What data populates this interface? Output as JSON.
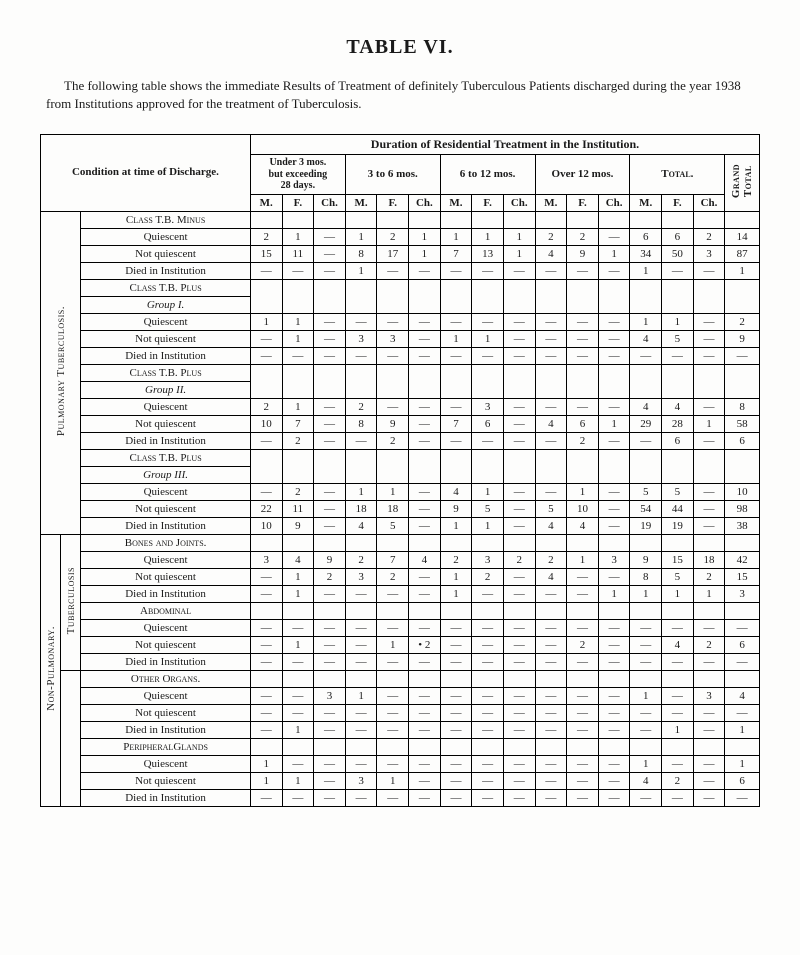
{
  "title": "TABLE VI.",
  "intro": "The following table shows the immediate Results of Treatment of definitely Tuberculous Patients discharged during the year 1938 from Institutions approved for the treatment of Tuberculosis.",
  "headers": {
    "condition": "Condition at\ntime of\nDischarge.",
    "duration": "Duration of Residential Treatment in the Institution.",
    "groups": [
      "Under 3 mos.\nbut exceeding\n28 days.",
      "3 to 6 mos.",
      "6 to 12 mos.",
      "Over 12 mos.",
      "Total."
    ],
    "sub": [
      "M.",
      "F.",
      "Ch."
    ],
    "grand_total": "Grand\nTotal"
  },
  "side_labels": {
    "pulmonary": "Pulmonary Tuberculosis.",
    "tuberculosis": "Tuberculosis",
    "non_pulmonary": "Non-Pulmonary."
  },
  "dash": "—",
  "sections": [
    {
      "header": "Class T.B. Minus",
      "rows": [
        {
          "label": "Quiescent",
          "v": [
            "2",
            "1",
            "—",
            "1",
            "2",
            "1",
            "1",
            "1",
            "1",
            "2",
            "2",
            "—",
            "6",
            "6",
            "2",
            "14"
          ]
        },
        {
          "label": "Not quiescent",
          "v": [
            "15",
            "11",
            "—",
            "8",
            "17",
            "1",
            "7",
            "13",
            "1",
            "4",
            "9",
            "1",
            "34",
            "50",
            "3",
            "87"
          ]
        },
        {
          "label": "Died in Institution",
          "v": [
            "—",
            "—",
            "—",
            "1",
            "—",
            "—",
            "—",
            "—",
            "—",
            "—",
            "—",
            "—",
            "1",
            "—",
            "—",
            "1"
          ]
        }
      ]
    },
    {
      "header": "Class T.B. Plus",
      "subheader": "Group I.",
      "rows": [
        {
          "label": "Quiescent",
          "v": [
            "1",
            "1",
            "—",
            "—",
            "—",
            "—",
            "—",
            "—",
            "—",
            "—",
            "—",
            "—",
            "1",
            "1",
            "—",
            "2"
          ]
        },
        {
          "label": "Not quiescent",
          "v": [
            "—",
            "1",
            "—",
            "3",
            "3",
            "—",
            "1",
            "1",
            "—",
            "—",
            "—",
            "—",
            "4",
            "5",
            "—",
            "9"
          ]
        },
        {
          "label": "Died in Institution",
          "v": [
            "—",
            "—",
            "—",
            "—",
            "—",
            "—",
            "—",
            "—",
            "—",
            "—",
            "—",
            "—",
            "—",
            "—",
            "—",
            "—"
          ]
        }
      ]
    },
    {
      "header": "Class T.B. Plus",
      "subheader": "Group II.",
      "rows": [
        {
          "label": "Quiescent",
          "v": [
            "2",
            "1",
            "—",
            "2",
            "—",
            "—",
            "—",
            "3",
            "—",
            "—",
            "—",
            "—",
            "4",
            "4",
            "—",
            "8"
          ]
        },
        {
          "label": "Not quiescent",
          "v": [
            "10",
            "7",
            "—",
            "8",
            "9",
            "—",
            "7",
            "6",
            "—",
            "4",
            "6",
            "1",
            "29",
            "28",
            "1",
            "58"
          ]
        },
        {
          "label": "Died in Institution",
          "v": [
            "—",
            "2",
            "—",
            "—",
            "2",
            "—",
            "—",
            "—",
            "—",
            "—",
            "2",
            "—",
            "—",
            "6",
            "—",
            "6"
          ]
        }
      ]
    },
    {
      "header": "Class T.B. Plus",
      "subheader": "Group III.",
      "rows": [
        {
          "label": "Quiescent",
          "v": [
            "—",
            "2",
            "—",
            "1",
            "1",
            "—",
            "4",
            "1",
            "—",
            "—",
            "1",
            "—",
            "5",
            "5",
            "—",
            "10"
          ]
        },
        {
          "label": "Not quiescent",
          "v": [
            "22",
            "11",
            "—",
            "18",
            "18",
            "—",
            "9",
            "5",
            "—",
            "5",
            "10",
            "—",
            "54",
            "44",
            "—",
            "98"
          ]
        },
        {
          "label": "Died in Institution",
          "v": [
            "10",
            "9",
            "—",
            "4",
            "5",
            "—",
            "1",
            "1",
            "—",
            "4",
            "4",
            "—",
            "19",
            "19",
            "—",
            "38"
          ]
        }
      ]
    },
    {
      "header": "Bones and Joints.",
      "rows": [
        {
          "label": "Quiescent",
          "v": [
            "3",
            "4",
            "9",
            "2",
            "7",
            "4",
            "2",
            "3",
            "2",
            "2",
            "1",
            "3",
            "9",
            "15",
            "18",
            "42"
          ]
        },
        {
          "label": "Not quiescent",
          "v": [
            "—",
            "1",
            "2",
            "3",
            "2",
            "—",
            "1",
            "2",
            "—",
            "4",
            "—",
            "—",
            "8",
            "5",
            "2",
            "15"
          ]
        },
        {
          "label": "Died in Institution",
          "v": [
            "—",
            "1",
            "—",
            "—",
            "—",
            "—",
            "1",
            "—",
            "—",
            "—",
            "—",
            "1",
            "1",
            "1",
            "1",
            "3"
          ]
        }
      ]
    },
    {
      "header": "Abdominal",
      "rows": [
        {
          "label": "Quiescent",
          "v": [
            "—",
            "—",
            "—",
            "—",
            "—",
            "—",
            "—",
            "—",
            "—",
            "—",
            "—",
            "—",
            "—",
            "—",
            "—",
            "—"
          ]
        },
        {
          "label": "Not quiescent",
          "v": [
            "—",
            "1",
            "—",
            "—",
            "1",
            "• 2",
            "—",
            "—",
            "—",
            "—",
            "2",
            "—",
            "—",
            "4",
            "2",
            "6"
          ]
        },
        {
          "label": "Died in Institution",
          "v": [
            "—",
            "—",
            "—",
            "—",
            "—",
            "—",
            "—",
            "—",
            "—",
            "—",
            "—",
            "—",
            "—",
            "—",
            "—",
            "—"
          ]
        }
      ]
    },
    {
      "header": "Other Organs.",
      "rows": [
        {
          "label": "Quiescent",
          "v": [
            "—",
            "—",
            "3",
            "1",
            "—",
            "—",
            "—",
            "—",
            "—",
            "—",
            "—",
            "—",
            "1",
            "—",
            "3",
            "4"
          ]
        },
        {
          "label": "Not quiescent",
          "v": [
            "—",
            "—",
            "—",
            "—",
            "—",
            "—",
            "—",
            "—",
            "—",
            "—",
            "—",
            "—",
            "—",
            "—",
            "—",
            "—"
          ]
        },
        {
          "label": "Died in Institution",
          "v": [
            "—",
            "1",
            "—",
            "—",
            "—",
            "—",
            "—",
            "—",
            "—",
            "—",
            "—",
            "—",
            "—",
            "1",
            "—",
            "1"
          ]
        }
      ]
    },
    {
      "header": "PeripheralGlands",
      "rows": [
        {
          "label": "Quiescent",
          "v": [
            "1",
            "—",
            "—",
            "—",
            "—",
            "—",
            "—",
            "—",
            "—",
            "—",
            "—",
            "—",
            "1",
            "—",
            "—",
            "1"
          ]
        },
        {
          "label": "Not quiescent",
          "v": [
            "1",
            "1",
            "—",
            "3",
            "1",
            "—",
            "—",
            "—",
            "—",
            "—",
            "—",
            "—",
            "4",
            "2",
            "—",
            "6"
          ]
        },
        {
          "label": "Died in Institution",
          "v": [
            "—",
            "—",
            "—",
            "—",
            "—",
            "—",
            "—",
            "—",
            "—",
            "—",
            "—",
            "—",
            "—",
            "—",
            "—",
            "—"
          ]
        }
      ]
    }
  ]
}
